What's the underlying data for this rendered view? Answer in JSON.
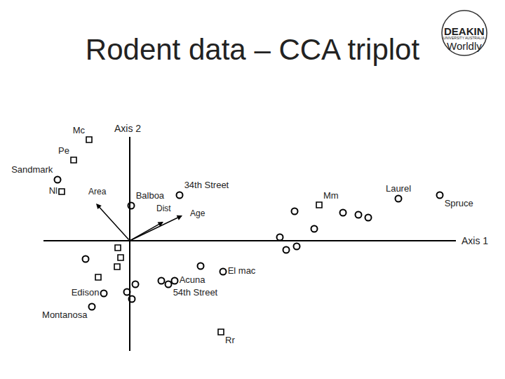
{
  "chart_data": {
    "type": "scatter",
    "title": "Rodent data – CCA triplot",
    "xlabel": "Axis 1",
    "ylabel": "Axis 2",
    "xlim": [
      -1.23,
      4.65
    ],
    "ylim": [
      -1.57,
      1.48
    ],
    "tick_labels": false,
    "grid": false,
    "sites": {
      "marker": "circle",
      "color": "#000000",
      "labels": [
        "Sandmark",
        "Balboa",
        "34th Street",
        "Laurel",
        "Spruce",
        "El mac",
        "Acuna",
        "54th Street",
        "Edison",
        "Montanosa",
        null,
        null,
        null,
        null,
        null,
        null,
        null,
        null,
        null,
        null,
        null,
        null,
        null
      ],
      "x": [
        -1.03,
        0.02,
        0.71,
        3.83,
        4.42,
        1.33,
        0.64,
        0.55,
        -0.37,
        -0.54,
        2.35,
        3.04,
        3.26,
        3.4,
        2.63,
        2.14,
        2.23,
        2.38,
        -0.63,
        1.01,
        0.45,
        0.08,
        -0.04
      ],
      "y": [
        0.87,
        0.5,
        0.65,
        0.6,
        0.65,
        -0.44,
        -0.57,
        -0.62,
        -0.75,
        -0.94,
        0.42,
        0.4,
        0.37,
        0.33,
        0.17,
        0.05,
        -0.13,
        -0.08,
        -0.26,
        -0.36,
        -0.57,
        -0.62,
        -0.73
      ]
    },
    "extra_sites": {
      "x": [
        0.03
      ],
      "y": [
        -0.83
      ]
    },
    "species": {
      "marker": "square",
      "color": "#000000",
      "labels": [
        "Mc",
        "Pe",
        "Nl",
        "Mm",
        "Rr",
        null,
        null,
        null,
        null
      ],
      "x": [
        -0.58,
        -0.8,
        -0.97,
        2.7,
        1.3,
        -0.17,
        -0.13,
        -0.18,
        -0.45
      ],
      "y": [
        1.44,
        1.15,
        0.7,
        0.51,
        -1.3,
        -0.1,
        -0.24,
        -0.37,
        -0.52
      ]
    },
    "arrows": [
      {
        "label": "Area",
        "x": -0.48,
        "y": 0.53
      },
      {
        "label": "Dist",
        "x": 0.48,
        "y": 0.27
      },
      {
        "label": "Age",
        "x": 0.75,
        "y": 0.36
      }
    ],
    "logo": [
      "DEAKIN",
      "UNIVERSITY AUSTRALIA",
      "Worldly"
    ]
  }
}
